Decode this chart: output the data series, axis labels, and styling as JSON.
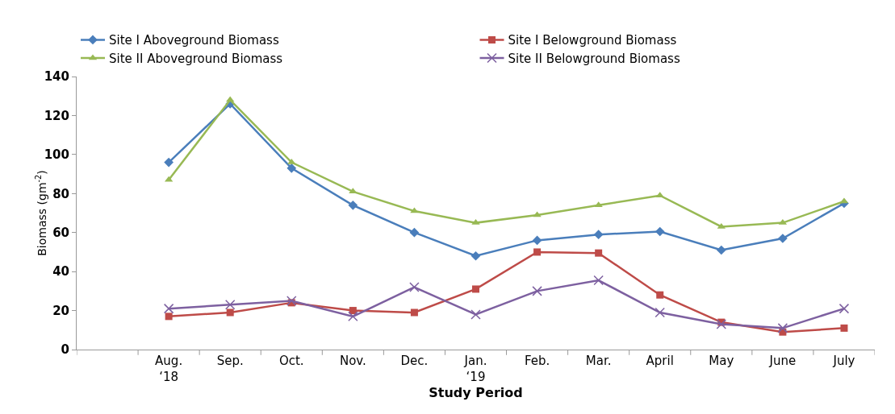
{
  "chart_data": {
    "type": "line",
    "xlabel": "Study Period",
    "ylabel": "Biomass (gm$^{-2}$)",
    "categories": [
      null,
      "Aug.\n‘18",
      "Sep.",
      "Oct.",
      "Nov.",
      "Dec.",
      "Jan.\n‘19",
      "Feb.",
      "Mar.",
      "April",
      "May",
      "June",
      "July"
    ],
    "ylim": [
      0,
      140
    ],
    "yticks": [
      0,
      20,
      40,
      60,
      80,
      100,
      120,
      140
    ],
    "grid": false,
    "legend": "top",
    "line_style": "solid",
    "series": [
      {
        "name": "Site I Aboveground Biomass",
        "color": "#4a7ebb",
        "marker": "diamond",
        "values": [
          null,
          96,
          126,
          93,
          74,
          60,
          48,
          56,
          59,
          60.5,
          51,
          57,
          75
        ]
      },
      {
        "name": "Site I Belowground Biomass",
        "color": "#be4b48",
        "marker": "square",
        "values": [
          null,
          17,
          19,
          24,
          20,
          19,
          31,
          50,
          49.5,
          28,
          14,
          9,
          11
        ]
      },
      {
        "name": "Site II Aboveground Biomass",
        "color": "#98b954",
        "marker": "triangle",
        "values": [
          null,
          87,
          128,
          96,
          81,
          71,
          65,
          69,
          74,
          79,
          63,
          65,
          76
        ]
      },
      {
        "name": "Site II Belowground Biomass",
        "color": "#7d60a0",
        "marker": "cross",
        "values": [
          null,
          21,
          23,
          25,
          17,
          32,
          18,
          30,
          35.5,
          19,
          13,
          11,
          21
        ]
      }
    ]
  }
}
